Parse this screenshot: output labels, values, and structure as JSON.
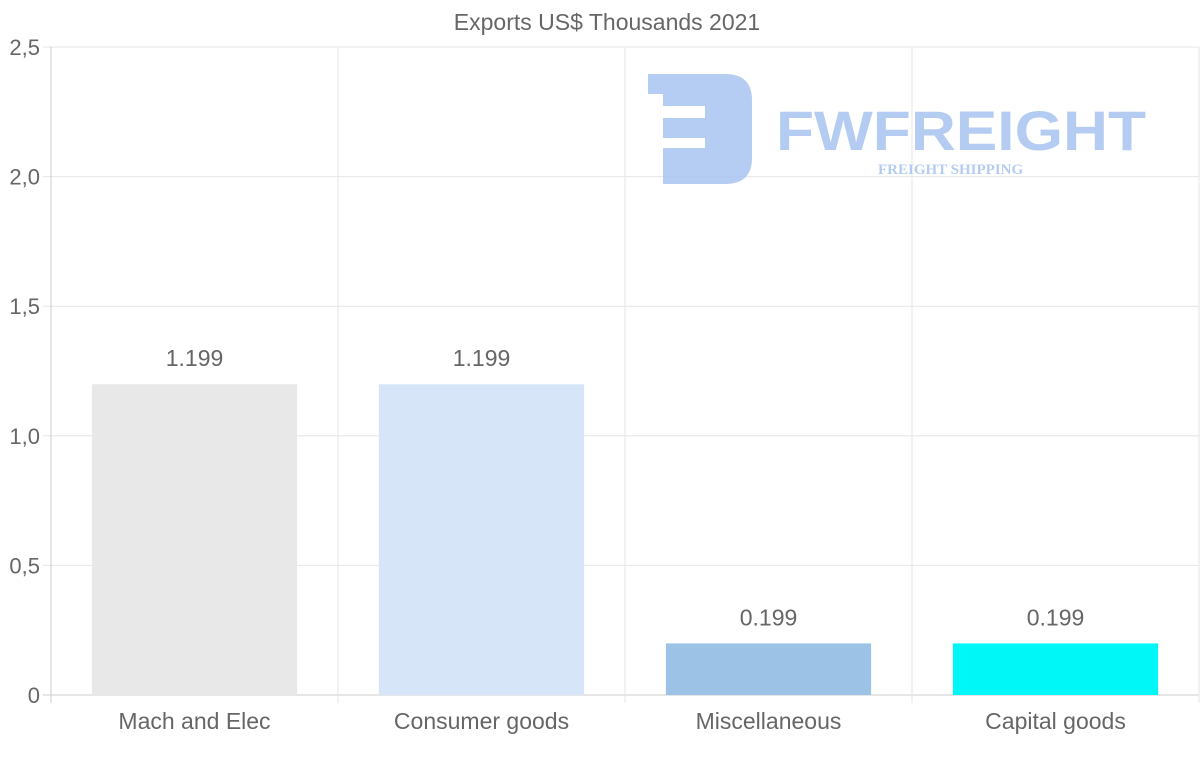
{
  "chart_data": {
    "type": "bar",
    "title": "Exports US$ Thousands 2021",
    "categories": [
      "Mach and Elec",
      "Consumer goods",
      "Miscellaneous",
      "Capital goods"
    ],
    "values": [
      1.199,
      1.199,
      0.199,
      0.199
    ],
    "data_labels": [
      "1.199",
      "1.199",
      "0.199",
      "0.199"
    ],
    "colors": [
      "#e8e8e8",
      "#d6e6f8",
      "#9cc2e6",
      "#00f7f8"
    ],
    "xlabel": "",
    "ylabel": "",
    "ylim": [
      0,
      2.5
    ],
    "yticks": [
      0,
      0.5,
      1.0,
      1.5,
      2.0,
      2.5
    ],
    "ytick_labels": [
      "0",
      "0,5",
      "1,0",
      "1,5",
      "2,0",
      "2,5"
    ],
    "grid": true,
    "legend": "none"
  },
  "watermark": {
    "brand": "FWFREIGHT",
    "tagline": "FREIGHT SHIPPING",
    "color": "#a8c4f0"
  }
}
